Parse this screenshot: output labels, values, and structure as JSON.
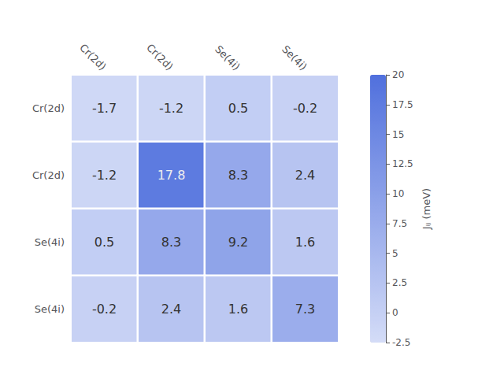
{
  "chart_data": {
    "type": "heatmap",
    "x_categories": [
      "Cr(2d)",
      "Cr(2d)",
      "Se(4i)",
      "Se(4i)"
    ],
    "y_categories": [
      "Cr(2d)",
      "Cr(2d)",
      "Se(4i)",
      "Se(4i)"
    ],
    "values": [
      [
        -1.7,
        -1.2,
        0.5,
        -0.2
      ],
      [
        -1.2,
        17.8,
        8.3,
        2.4
      ],
      [
        0.5,
        8.3,
        9.2,
        1.6
      ],
      [
        -0.2,
        2.4,
        1.6,
        7.3
      ]
    ],
    "data_labels": true,
    "colorbar_label": "Jᵢⱼ (meV)",
    "colorbar_range": [
      -2.5,
      20.0
    ],
    "colorbar_ticks": [
      -2.5,
      0.0,
      2.5,
      5.0,
      7.5,
      10.0,
      12.5,
      15.0,
      17.5,
      20.0
    ]
  }
}
